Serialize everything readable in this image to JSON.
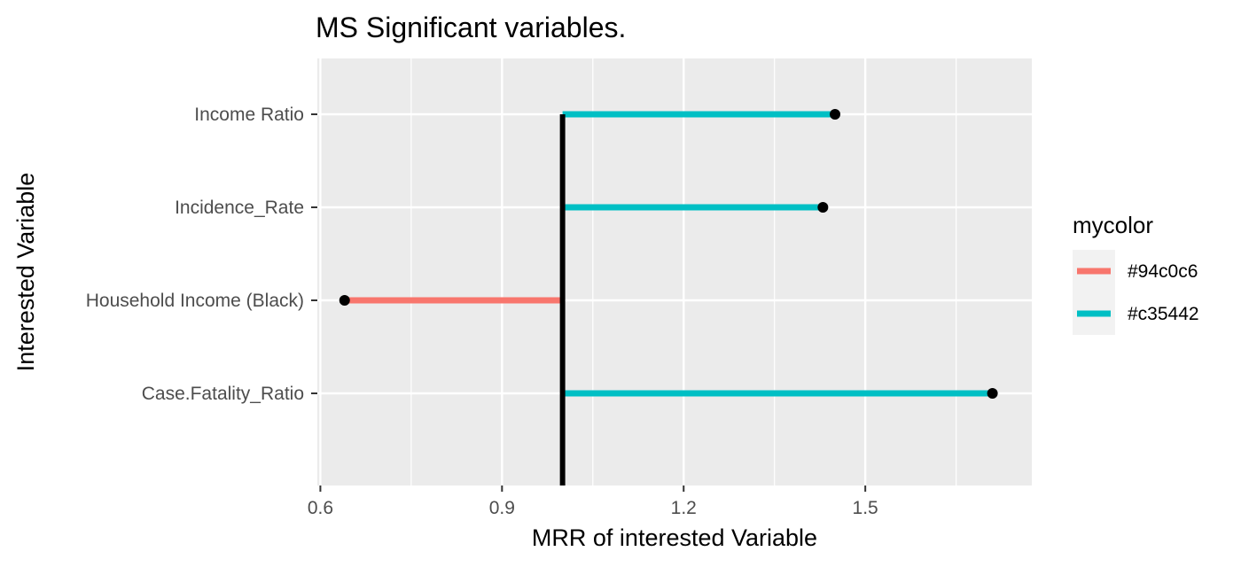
{
  "chart_data": {
    "type": "lollipop",
    "title": "MS Significant variables.",
    "xlabel": "MRR of interested Variable",
    "ylabel": "Interested Variable",
    "xlim": [
      0.595,
      1.775
    ],
    "x_ticks": [
      0.6,
      0.9,
      1.2,
      1.5
    ],
    "x_tick_labels": [
      "0.6",
      "0.9",
      "1.2",
      "1.5"
    ],
    "reference_x": 1.0,
    "categories": [
      "Income Ratio",
      "Incidence_Rate",
      "Household Income (Black)",
      "Case.Fatality_Ratio"
    ],
    "values": [
      1.45,
      1.43,
      0.64,
      1.71
    ],
    "color_group": [
      "#c35442",
      "#c35442",
      "#94c0c6",
      "#c35442"
    ],
    "grid": true,
    "legend": {
      "title": "mycolor",
      "position": "right",
      "entries": [
        {
          "label": "#94c0c6",
          "color": "#f8766d"
        },
        {
          "label": "#c35442",
          "color": "#00bfc4"
        }
      ]
    },
    "colors": {
      "panel_background": "#ebebeb",
      "grid_major": "#ffffff",
      "reference_line": "#000000",
      "point": "#000000"
    }
  }
}
